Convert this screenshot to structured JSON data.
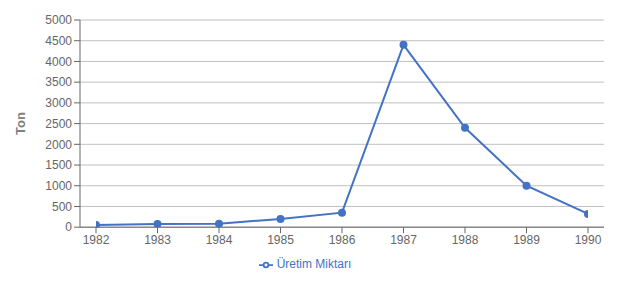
{
  "chart_data": {
    "type": "line",
    "ylabel": "Ton",
    "x": [
      1982,
      1983,
      1984,
      1985,
      1986,
      1987,
      1988,
      1989,
      1990
    ],
    "xlim": [
      1982,
      1990
    ],
    "xticks": [
      1982,
      1983,
      1984,
      1985,
      1986,
      1987,
      1988,
      1989,
      1990
    ],
    "ylim": [
      0,
      5000
    ],
    "yticks": [
      0,
      500,
      1000,
      1500,
      2000,
      2500,
      3000,
      3500,
      4000,
      4500,
      5000
    ],
    "grid": "y",
    "legend": "bottom",
    "series": [
      {
        "name": "Üretim Miktarı",
        "color": "#4472C4",
        "marker": "circle",
        "values": [
          50,
          75,
          80,
          200,
          350,
          4400,
          2400,
          1000,
          320
        ]
      }
    ]
  }
}
